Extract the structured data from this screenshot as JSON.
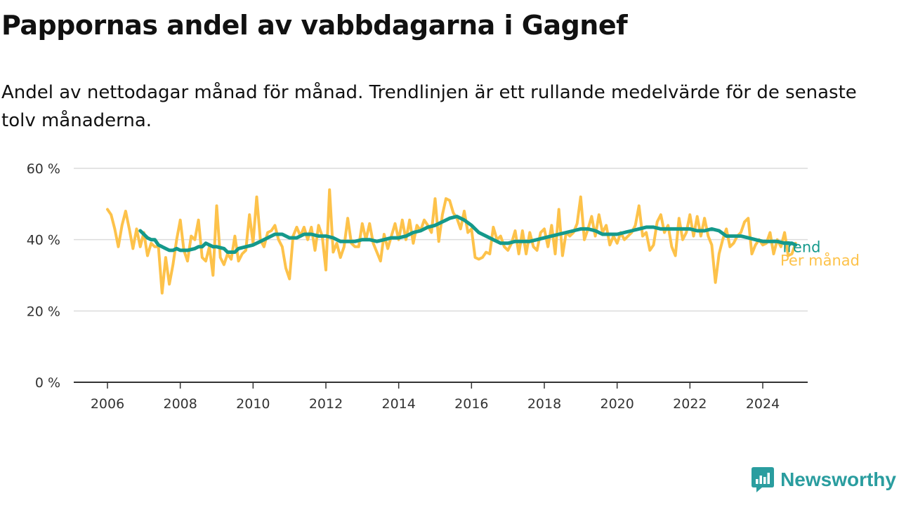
{
  "header": {
    "title": "Pappornas andel av vabbdagarna i Gagnef",
    "subtitle": "Andel av nettodagar månad för månad. Trendlinjen är ett rullande medelvärde för de senaste tolv månaderna."
  },
  "brand": {
    "name": "Newsworthy",
    "color": "#2a9d9f"
  },
  "chart_data": {
    "type": "line",
    "title": "Pappornas andel av vabbdagarna i Gagnef",
    "subtitle": "Andel av nettodagar månad för månad. Trendlinjen är ett rullande medelvärde för de senaste tolv månaderna.",
    "xlabel": "",
    "ylabel": "",
    "xlim": [
      2005.5,
      2025.1
    ],
    "ylim": [
      0,
      60
    ],
    "x_ticks": [
      2006,
      2008,
      2010,
      2012,
      2014,
      2016,
      2018,
      2020,
      2022,
      2024
    ],
    "x_tick_labels": [
      "2006",
      "2008",
      "2010",
      "2012",
      "2014",
      "2016",
      "2018",
      "2020",
      "2022",
      "2024"
    ],
    "y_ticks": [
      0,
      20,
      40,
      60
    ],
    "y_tick_labels": [
      "0 %",
      "20 %",
      "40 %",
      "60 %"
    ],
    "grid": true,
    "legend": "direct labels at line ends (right)",
    "series": [
      {
        "name": "Per månad",
        "color": "#fdc24a",
        "points": [
          [
            2006.0,
            48.5
          ],
          [
            2006.1,
            47
          ],
          [
            2006.2,
            43
          ],
          [
            2006.3,
            38
          ],
          [
            2006.4,
            44
          ],
          [
            2006.5,
            48
          ],
          [
            2006.6,
            43
          ],
          [
            2006.7,
            37.5
          ],
          [
            2006.8,
            43
          ],
          [
            2006.9,
            38
          ],
          [
            2007.0,
            42
          ],
          [
            2007.1,
            35.5
          ],
          [
            2007.2,
            39
          ],
          [
            2007.3,
            38
          ],
          [
            2007.4,
            38
          ],
          [
            2007.5,
            25
          ],
          [
            2007.6,
            35
          ],
          [
            2007.7,
            27.5
          ],
          [
            2007.8,
            33
          ],
          [
            2007.9,
            40
          ],
          [
            2008.0,
            45.5
          ],
          [
            2008.1,
            37
          ],
          [
            2008.2,
            34
          ],
          [
            2008.3,
            41
          ],
          [
            2008.4,
            40
          ],
          [
            2008.5,
            45.5
          ],
          [
            2008.6,
            35
          ],
          [
            2008.7,
            34
          ],
          [
            2008.8,
            38
          ],
          [
            2008.9,
            30
          ],
          [
            2009.0,
            49.5
          ],
          [
            2009.1,
            35
          ],
          [
            2009.2,
            33
          ],
          [
            2009.3,
            36
          ],
          [
            2009.4,
            34.5
          ],
          [
            2009.5,
            41
          ],
          [
            2009.6,
            34
          ],
          [
            2009.7,
            36
          ],
          [
            2009.8,
            37
          ],
          [
            2009.9,
            47
          ],
          [
            2010.0,
            39
          ],
          [
            2010.1,
            52
          ],
          [
            2010.2,
            40
          ],
          [
            2010.3,
            38
          ],
          [
            2010.4,
            42
          ],
          [
            2010.5,
            42.5
          ],
          [
            2010.6,
            44
          ],
          [
            2010.7,
            40
          ],
          [
            2010.8,
            38
          ],
          [
            2010.9,
            32
          ],
          [
            2011.0,
            29
          ],
          [
            2011.1,
            41
          ],
          [
            2011.2,
            43.5
          ],
          [
            2011.3,
            41
          ],
          [
            2011.4,
            43.5
          ],
          [
            2011.5,
            40
          ],
          [
            2011.6,
            43.5
          ],
          [
            2011.7,
            37
          ],
          [
            2011.8,
            44
          ],
          [
            2011.9,
            41
          ],
          [
            2012.0,
            31.5
          ],
          [
            2012.1,
            54
          ],
          [
            2012.2,
            36.5
          ],
          [
            2012.3,
            39
          ],
          [
            2012.4,
            35
          ],
          [
            2012.5,
            38
          ],
          [
            2012.6,
            46
          ],
          [
            2012.7,
            39
          ],
          [
            2012.8,
            38
          ],
          [
            2012.9,
            38
          ],
          [
            2013.0,
            44.5
          ],
          [
            2013.1,
            40
          ],
          [
            2013.2,
            44.5
          ],
          [
            2013.3,
            39
          ],
          [
            2013.4,
            36.5
          ],
          [
            2013.5,
            34
          ],
          [
            2013.6,
            41.5
          ],
          [
            2013.7,
            37.5
          ],
          [
            2013.8,
            41
          ],
          [
            2013.9,
            44.5
          ],
          [
            2014.0,
            40
          ],
          [
            2014.1,
            45.5
          ],
          [
            2014.2,
            40
          ],
          [
            2014.3,
            45.5
          ],
          [
            2014.4,
            39
          ],
          [
            2014.5,
            44
          ],
          [
            2014.6,
            42.5
          ],
          [
            2014.7,
            45.5
          ],
          [
            2014.8,
            44
          ],
          [
            2014.9,
            42
          ],
          [
            2015.0,
            51.5
          ],
          [
            2015.1,
            39.5
          ],
          [
            2015.2,
            47
          ],
          [
            2015.3,
            51.5
          ],
          [
            2015.4,
            51
          ],
          [
            2015.5,
            47.5
          ],
          [
            2015.6,
            46
          ],
          [
            2015.7,
            43
          ],
          [
            2015.8,
            48
          ],
          [
            2015.9,
            42
          ],
          [
            2016.0,
            43
          ],
          [
            2016.1,
            35
          ],
          [
            2016.2,
            34.5
          ],
          [
            2016.3,
            35
          ],
          [
            2016.4,
            36.5
          ],
          [
            2016.5,
            36
          ],
          [
            2016.6,
            43.5
          ],
          [
            2016.7,
            40
          ],
          [
            2016.8,
            41
          ],
          [
            2016.9,
            38
          ],
          [
            2017.0,
            37
          ],
          [
            2017.1,
            39
          ],
          [
            2017.2,
            42.5
          ],
          [
            2017.3,
            36
          ],
          [
            2017.4,
            42.5
          ],
          [
            2017.5,
            36
          ],
          [
            2017.6,
            42
          ],
          [
            2017.7,
            38
          ],
          [
            2017.8,
            37
          ],
          [
            2017.9,
            42
          ],
          [
            2018.0,
            43
          ],
          [
            2018.1,
            38
          ],
          [
            2018.2,
            44
          ],
          [
            2018.3,
            36
          ],
          [
            2018.4,
            48.5
          ],
          [
            2018.5,
            35.5
          ],
          [
            2018.6,
            42
          ],
          [
            2018.7,
            41
          ],
          [
            2018.8,
            42
          ],
          [
            2018.9,
            44.5
          ],
          [
            2019.0,
            52
          ],
          [
            2019.1,
            40
          ],
          [
            2019.2,
            43
          ],
          [
            2019.3,
            46.5
          ],
          [
            2019.4,
            41
          ],
          [
            2019.5,
            47
          ],
          [
            2019.6,
            42
          ],
          [
            2019.7,
            44
          ],
          [
            2019.8,
            38.5
          ],
          [
            2019.9,
            41
          ],
          [
            2020.0,
            39
          ],
          [
            2020.1,
            42
          ],
          [
            2020.2,
            40
          ],
          [
            2020.3,
            41
          ],
          [
            2020.4,
            42
          ],
          [
            2020.5,
            44
          ],
          [
            2020.6,
            49.5
          ],
          [
            2020.7,
            41
          ],
          [
            2020.8,
            42
          ],
          [
            2020.9,
            37
          ],
          [
            2021.0,
            38.5
          ],
          [
            2021.1,
            45
          ],
          [
            2021.2,
            47
          ],
          [
            2021.3,
            42
          ],
          [
            2021.4,
            44
          ],
          [
            2021.5,
            38
          ],
          [
            2021.6,
            35.5
          ],
          [
            2021.7,
            46
          ],
          [
            2021.8,
            40
          ],
          [
            2021.9,
            42
          ],
          [
            2022.0,
            47
          ],
          [
            2022.1,
            41
          ],
          [
            2022.2,
            46.5
          ],
          [
            2022.3,
            41
          ],
          [
            2022.4,
            46
          ],
          [
            2022.5,
            41
          ],
          [
            2022.6,
            38.5
          ],
          [
            2022.7,
            28
          ],
          [
            2022.8,
            36
          ],
          [
            2022.9,
            40
          ],
          [
            2023.0,
            43
          ],
          [
            2023.1,
            38
          ],
          [
            2023.2,
            39
          ],
          [
            2023.3,
            41
          ],
          [
            2023.4,
            42
          ],
          [
            2023.5,
            45
          ],
          [
            2023.6,
            46
          ],
          [
            2023.7,
            36
          ],
          [
            2023.8,
            38.5
          ],
          [
            2023.9,
            40
          ],
          [
            2024.0,
            38.5
          ],
          [
            2024.1,
            39
          ],
          [
            2024.2,
            42
          ],
          [
            2024.3,
            36
          ],
          [
            2024.4,
            40
          ],
          [
            2024.5,
            38
          ],
          [
            2024.6,
            42
          ],
          [
            2024.7,
            35.5
          ],
          [
            2024.8,
            36
          ],
          [
            2024.9,
            39
          ]
        ]
      },
      {
        "name": "Trend",
        "color": "#14998b",
        "points": [
          [
            2006.9,
            42.5
          ],
          [
            2007.0,
            41.5
          ],
          [
            2007.1,
            40.5
          ],
          [
            2007.2,
            40
          ],
          [
            2007.3,
            40
          ],
          [
            2007.4,
            38.5
          ],
          [
            2007.5,
            38
          ],
          [
            2007.6,
            37.5
          ],
          [
            2007.7,
            37
          ],
          [
            2007.8,
            37
          ],
          [
            2007.9,
            37.5
          ],
          [
            2008.0,
            37
          ],
          [
            2008.2,
            37
          ],
          [
            2008.4,
            37.5
          ],
          [
            2008.5,
            38
          ],
          [
            2008.6,
            38
          ],
          [
            2008.7,
            39
          ],
          [
            2008.8,
            38.5
          ],
          [
            2008.9,
            38
          ],
          [
            2009.0,
            38
          ],
          [
            2009.2,
            37.5
          ],
          [
            2009.3,
            36.5
          ],
          [
            2009.5,
            36.5
          ],
          [
            2009.6,
            37.5
          ],
          [
            2009.8,
            38
          ],
          [
            2010.0,
            38.5
          ],
          [
            2010.2,
            39.5
          ],
          [
            2010.4,
            40.5
          ],
          [
            2010.6,
            41.5
          ],
          [
            2010.8,
            41.5
          ],
          [
            2011.0,
            40.5
          ],
          [
            2011.2,
            40.5
          ],
          [
            2011.4,
            41.5
          ],
          [
            2011.6,
            41.5
          ],
          [
            2011.8,
            41
          ],
          [
            2012.0,
            41
          ],
          [
            2012.2,
            40.5
          ],
          [
            2012.4,
            39.5
          ],
          [
            2012.6,
            39.5
          ],
          [
            2012.8,
            39.5
          ],
          [
            2013.0,
            40
          ],
          [
            2013.2,
            40
          ],
          [
            2013.4,
            39.5
          ],
          [
            2013.6,
            40
          ],
          [
            2013.8,
            40.5
          ],
          [
            2014.0,
            40.5
          ],
          [
            2014.2,
            41
          ],
          [
            2014.4,
            42
          ],
          [
            2014.6,
            42.5
          ],
          [
            2014.8,
            43.5
          ],
          [
            2015.0,
            44
          ],
          [
            2015.2,
            45
          ],
          [
            2015.4,
            46
          ],
          [
            2015.6,
            46.5
          ],
          [
            2015.8,
            45.5
          ],
          [
            2016.0,
            44
          ],
          [
            2016.2,
            42
          ],
          [
            2016.4,
            41
          ],
          [
            2016.6,
            40
          ],
          [
            2016.8,
            39
          ],
          [
            2017.0,
            39
          ],
          [
            2017.2,
            39.5
          ],
          [
            2017.4,
            39.5
          ],
          [
            2017.6,
            39.5
          ],
          [
            2017.8,
            40
          ],
          [
            2018.0,
            40.5
          ],
          [
            2018.2,
            41
          ],
          [
            2018.4,
            41.5
          ],
          [
            2018.6,
            42
          ],
          [
            2018.8,
            42.5
          ],
          [
            2019.0,
            43
          ],
          [
            2019.2,
            43
          ],
          [
            2019.4,
            42.5
          ],
          [
            2019.6,
            41.5
          ],
          [
            2019.8,
            41.5
          ],
          [
            2020.0,
            41.5
          ],
          [
            2020.2,
            42
          ],
          [
            2020.4,
            42.5
          ],
          [
            2020.6,
            43
          ],
          [
            2020.8,
            43.5
          ],
          [
            2021.0,
            43.5
          ],
          [
            2021.2,
            43
          ],
          [
            2021.4,
            43
          ],
          [
            2021.6,
            43
          ],
          [
            2021.8,
            43
          ],
          [
            2022.0,
            43
          ],
          [
            2022.2,
            42.5
          ],
          [
            2022.4,
            42.5
          ],
          [
            2022.6,
            43
          ],
          [
            2022.8,
            42.5
          ],
          [
            2023.0,
            41
          ],
          [
            2023.2,
            41
          ],
          [
            2023.4,
            41
          ],
          [
            2023.6,
            40.5
          ],
          [
            2023.8,
            40
          ],
          [
            2024.0,
            39.5
          ],
          [
            2024.2,
            39.5
          ],
          [
            2024.4,
            39.5
          ],
          [
            2024.6,
            39
          ],
          [
            2024.8,
            39
          ],
          [
            2024.9,
            38.5
          ]
        ]
      }
    ]
  }
}
